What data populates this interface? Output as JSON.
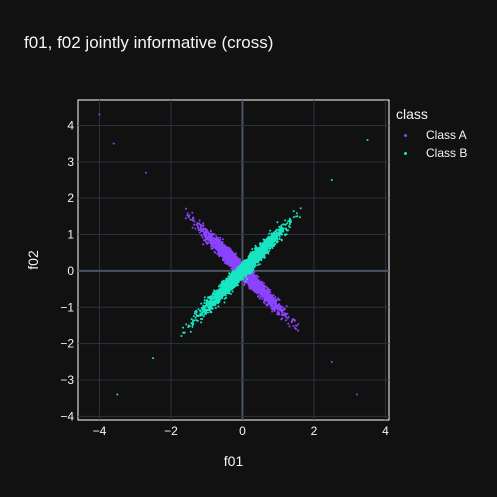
{
  "chart_data": {
    "type": "scatter",
    "title": "f01, f02 jointly informative (cross)",
    "xlabel": "f01",
    "ylabel": "f02",
    "xlim": [
      -4.6,
      4.1
    ],
    "ylim": [
      -4.1,
      4.7
    ],
    "xticks": [
      -4,
      -2,
      0,
      2,
      4
    ],
    "yticks": [
      -4,
      -3,
      -2,
      -1,
      0,
      1,
      2,
      3,
      4
    ],
    "xtick_labels": [
      "−4",
      "−2",
      "0",
      "2",
      "4"
    ],
    "ytick_labels": [
      "−4",
      "−3",
      "−2",
      "−1",
      "0",
      "1",
      "2",
      "3",
      "4"
    ],
    "grid": true,
    "legend": {
      "title": "class",
      "placement": "right"
    },
    "series": [
      {
        "name": "Class A",
        "color": "#8b44ff",
        "relation": "y ≈ -x",
        "x_range": [
          -4.0,
          3.6
        ],
        "spread": 0.18,
        "anchor_points": [
          [
            -4.0,
            4.3
          ],
          [
            -3.6,
            3.5
          ],
          [
            -2.7,
            2.7
          ],
          [
            -1.5,
            1.5
          ],
          [
            0,
            0
          ],
          [
            1.5,
            -1.5
          ],
          [
            2.5,
            -2.5
          ],
          [
            3.2,
            -3.4
          ]
        ]
      },
      {
        "name": "Class B",
        "color": "#19e6c3",
        "relation": "y ≈ x",
        "x_range": [
          -3.5,
          3.5
        ],
        "spread": 0.18,
        "anchor_points": [
          [
            -3.5,
            -3.4
          ],
          [
            -2.5,
            -2.4
          ],
          [
            -1.5,
            -1.5
          ],
          [
            0,
            0
          ],
          [
            1.5,
            1.5
          ],
          [
            2.5,
            2.5
          ],
          [
            3.5,
            3.6
          ]
        ]
      }
    ]
  }
}
